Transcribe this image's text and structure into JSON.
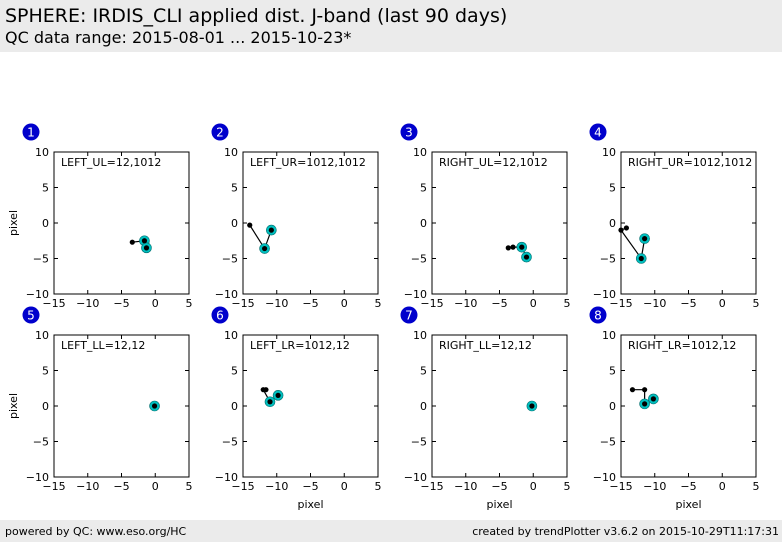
{
  "header": {
    "title": "SPHERE: IRDIS_CLI applied dist. J-band (last 90 days)",
    "subtitle": "QC data range: 2015-08-01 ... 2015-10-23*"
  },
  "footer": {
    "left": "powered by QC: www.eso.org/HC",
    "right": "created by trendPlotter v3.6.2 on 2015-10-29T11:17:31"
  },
  "colors": {
    "marker_fill": "#00bfbf",
    "point": "#000000",
    "badge": "#0000cc",
    "band": "#ebebeb"
  },
  "chart_data": [
    {
      "id": "1",
      "type": "scatter",
      "label": "LEFT_UL=12,1012",
      "ylabel": "pixel",
      "xlabel": "",
      "xlim": [
        -15,
        5
      ],
      "ylim": [
        -10,
        10
      ],
      "xticks": [
        -15,
        -10,
        -5,
        0,
        5
      ],
      "yticks": [
        -10,
        -5,
        0,
        5,
        10
      ],
      "path": [
        [
          -3.4,
          -2.7
        ],
        [
          -1.6,
          -2.5
        ],
        [
          -1.3,
          -3.5
        ]
      ],
      "highlighted": [
        [
          -1.6,
          -2.5
        ],
        [
          -1.3,
          -3.5
        ]
      ]
    },
    {
      "id": "2",
      "type": "scatter",
      "label": "LEFT_UR=1012,1012",
      "ylabel": "",
      "xlabel": "",
      "xlim": [
        -15,
        5
      ],
      "ylim": [
        -10,
        10
      ],
      "xticks": [
        -15,
        -10,
        -5,
        0,
        5
      ],
      "yticks": [
        -10,
        -5,
        0,
        5,
        10
      ],
      "path": [
        [
          -14.0,
          -0.3
        ],
        [
          -11.8,
          -3.6
        ],
        [
          -10.8,
          -1.0
        ]
      ],
      "highlighted": [
        [
          -11.8,
          -3.6
        ],
        [
          -10.8,
          -1.0
        ]
      ]
    },
    {
      "id": "3",
      "type": "scatter",
      "label": "RIGHT_UL=12,1012",
      "ylabel": "",
      "xlabel": "",
      "xlim": [
        -15,
        5
      ],
      "ylim": [
        -10,
        10
      ],
      "xticks": [
        -15,
        -10,
        -5,
        0,
        5
      ],
      "yticks": [
        -10,
        -5,
        0,
        5,
        10
      ],
      "path": [
        [
          -3.7,
          -3.5
        ],
        [
          -3.0,
          -3.4
        ],
        [
          -1.7,
          -3.4
        ],
        [
          -1.0,
          -4.8
        ]
      ],
      "highlighted": [
        [
          -1.7,
          -3.4
        ],
        [
          -1.0,
          -4.8
        ]
      ]
    },
    {
      "id": "4",
      "type": "scatter",
      "label": "RIGHT_UR=1012,1012",
      "ylabel": "",
      "xlabel": "",
      "xlim": [
        -15,
        5
      ],
      "ylim": [
        -10,
        10
      ],
      "xticks": [
        -15,
        -10,
        -5,
        0,
        5
      ],
      "yticks": [
        -10,
        -5,
        0,
        5,
        10
      ],
      "path": [
        [
          -14.2,
          -0.7
        ],
        [
          -15.0,
          -1.0
        ],
        [
          -12.0,
          -5.0
        ],
        [
          -11.5,
          -2.2
        ]
      ],
      "highlighted": [
        [
          -12.0,
          -5.0
        ],
        [
          -11.5,
          -2.2
        ]
      ]
    },
    {
      "id": "5",
      "type": "scatter",
      "label": "LEFT_LL=12,12",
      "ylabel": "pixel",
      "xlabel": "",
      "xlim": [
        -15,
        5
      ],
      "ylim": [
        -10,
        10
      ],
      "xticks": [
        -15,
        -10,
        -5,
        0,
        5
      ],
      "yticks": [
        -10,
        -5,
        0,
        5,
        10
      ],
      "path": [
        [
          -0.1,
          0.0
        ]
      ],
      "highlighted": [
        [
          -0.1,
          0.0
        ]
      ]
    },
    {
      "id": "6",
      "type": "scatter",
      "label": "LEFT_LR=1012,12",
      "ylabel": "",
      "xlabel": "pixel",
      "xlim": [
        -15,
        5
      ],
      "ylim": [
        -10,
        10
      ],
      "xticks": [
        -15,
        -10,
        -5,
        0,
        5
      ],
      "yticks": [
        -10,
        -5,
        0,
        5,
        10
      ],
      "path": [
        [
          -11.6,
          2.3
        ],
        [
          -12.0,
          2.3
        ],
        [
          -11.0,
          0.6
        ],
        [
          -9.8,
          1.5
        ]
      ],
      "highlighted": [
        [
          -11.0,
          0.6
        ],
        [
          -9.8,
          1.5
        ]
      ]
    },
    {
      "id": "7",
      "type": "scatter",
      "label": "RIGHT_LL=12,12",
      "ylabel": "",
      "xlabel": "pixel",
      "xlim": [
        -15,
        5
      ],
      "ylim": [
        -10,
        10
      ],
      "xticks": [
        -15,
        -10,
        -5,
        0,
        5
      ],
      "yticks": [
        -10,
        -5,
        0,
        5,
        10
      ],
      "path": [
        [
          -0.2,
          0.0
        ]
      ],
      "highlighted": [
        [
          -0.2,
          0.0
        ]
      ]
    },
    {
      "id": "8",
      "type": "scatter",
      "label": "RIGHT_LR=1012,12",
      "ylabel": "",
      "xlabel": "pixel",
      "xlim": [
        -15,
        5
      ],
      "ylim": [
        -10,
        10
      ],
      "xticks": [
        -15,
        -10,
        -5,
        0,
        5
      ],
      "yticks": [
        -10,
        -5,
        0,
        5,
        10
      ],
      "path": [
        [
          -13.3,
          2.3
        ],
        [
          -11.5,
          2.3
        ],
        [
          -11.5,
          0.3
        ],
        [
          -10.2,
          1.0
        ]
      ],
      "highlighted": [
        [
          -11.5,
          0.3
        ],
        [
          -10.2,
          1.0
        ]
      ]
    }
  ]
}
